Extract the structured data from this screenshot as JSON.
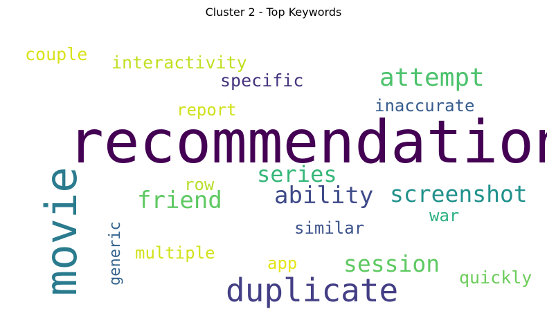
{
  "chart_data": {
    "type": "wordcloud",
    "title": "Cluster 2 - Top Keywords",
    "grid": false,
    "legend": "none",
    "words": [
      {
        "key": "recommendation",
        "text": "recommendation",
        "color": "#440154",
        "weight": 1.0
      },
      {
        "key": "movie",
        "text": "movie",
        "color": "#2a7b8e",
        "weight": 0.72
      },
      {
        "key": "duplicate",
        "text": "duplicate",
        "color": "#433e85",
        "weight": 0.53
      },
      {
        "key": "attempt",
        "text": "attempt",
        "color": "#4cc26c",
        "weight": 0.42
      },
      {
        "key": "ability",
        "text": "ability",
        "color": "#3e4a89",
        "weight": 0.4
      },
      {
        "key": "friend",
        "text": "friend",
        "color": "#5ec962",
        "weight": 0.4
      },
      {
        "key": "screenshot",
        "text": "screenshot",
        "color": "#21918c",
        "weight": 0.38
      },
      {
        "key": "session",
        "text": "session",
        "color": "#5ec962",
        "weight": 0.38
      },
      {
        "key": "series",
        "text": "series",
        "color": "#35b779",
        "weight": 0.37
      },
      {
        "key": "specific",
        "text": "specific",
        "color": "#46337e",
        "weight": 0.29
      },
      {
        "key": "interactivity",
        "text": "interactivity",
        "color": "#c2df23",
        "weight": 0.29
      },
      {
        "key": "couple",
        "text": "couple",
        "color": "#d8e219",
        "weight": 0.29
      },
      {
        "key": "quickly",
        "text": "quickly",
        "color": "#6ccd5a",
        "weight": 0.29
      },
      {
        "key": "inaccurate",
        "text": "inaccurate",
        "color": "#365c8d",
        "weight": 0.28
      },
      {
        "key": "report",
        "text": "report",
        "color": "#d0e11c",
        "weight": 0.28
      },
      {
        "key": "row",
        "text": "row",
        "color": "#b5de2b",
        "weight": 0.28
      },
      {
        "key": "war",
        "text": "war",
        "color": "#2ab07f",
        "weight": 0.28
      },
      {
        "key": "similar",
        "text": "similar",
        "color": "#3b528b",
        "weight": 0.28
      },
      {
        "key": "multiple",
        "text": "multiple",
        "color": "#d2e21b",
        "weight": 0.28
      },
      {
        "key": "app",
        "text": "app",
        "color": "#e5e419",
        "weight": 0.28
      },
      {
        "key": "generic",
        "text": "generic",
        "color": "#33638d",
        "weight": 0.26
      }
    ]
  }
}
